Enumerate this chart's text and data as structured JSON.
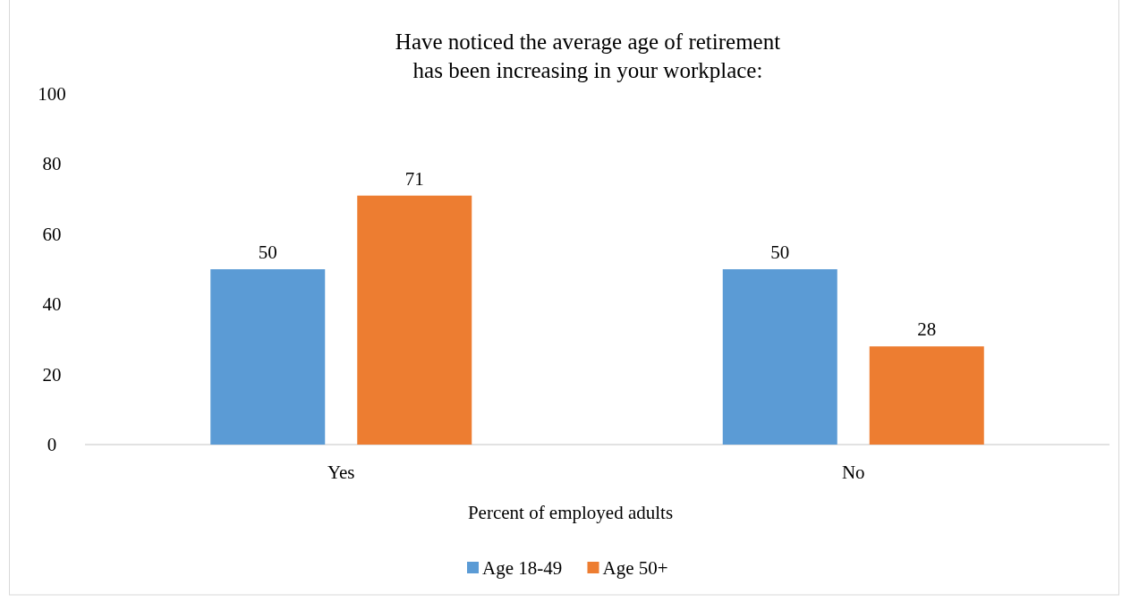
{
  "chart_data": {
    "type": "bar",
    "title": "Have noticed the average age of retirement\nhas been increasing in your workplace:",
    "xlabel": "Percent of employed adults",
    "categories": [
      "Yes",
      "No"
    ],
    "series": [
      {
        "name": "Age 18-49",
        "color": "#5b9bd5",
        "values": [
          50,
          50
        ]
      },
      {
        "name": "Age 50+",
        "color": "#ed7d31",
        "values": [
          71,
          28
        ]
      }
    ],
    "ylim": [
      0,
      100
    ],
    "yticks": [
      0,
      20,
      40,
      60,
      80,
      100
    ],
    "grid": false,
    "legend": "bottom",
    "data_labels": true
  }
}
